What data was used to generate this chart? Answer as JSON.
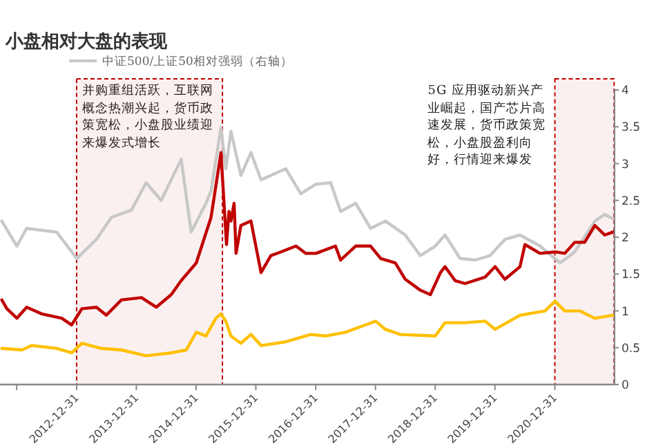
{
  "chart_data": {
    "type": "line",
    "title": "小盘相对大盘的表现",
    "xlim": [
      "2011-09-20",
      "2021-12-31"
    ],
    "xticks": [
      {
        "value": "2011-12-31",
        "label": null
      },
      "2012-12-31",
      "2013-12-31",
      "2014-12-31",
      "2015-12-31",
      "2016-12-31",
      "2017-12-31",
      "2018-12-31",
      "2019-12-31",
      "2020-12-31"
    ],
    "y2lim": [
      0,
      4
    ],
    "y2ticks": [
      0,
      0.5,
      1,
      1.5,
      2,
      2.5,
      3,
      3.5,
      4
    ],
    "legend": "top",
    "grid": false,
    "bands": [
      {
        "axis": "x",
        "from": "2012-12-31",
        "to": "2015-06-10",
        "label": "并购重组活跃，互联网概念热潮兴起，货币政策宽松，小盘股业绩迎来爆发式增长",
        "color": "#c00000"
      },
      {
        "axis": "x",
        "from": "2020-12-31",
        "to": "2021-12-28",
        "label": "5G 应用驱动新兴产业崛起，国产芯片高速发展，货币政策宽松，小盘股盈利向好，行情迎来爆发",
        "color": "#c00000"
      }
    ],
    "series": [
      {
        "name": "中证500/上证50相对强弱（右轴）",
        "color": "#c8c8c8",
        "axis": "y2",
        "x": [
          "2011-10",
          "2012-01",
          "2012-03",
          "2012-09",
          "2012-12",
          "2013-01",
          "2013-05",
          "2013-08",
          "2013-12",
          "2014-03",
          "2014-06",
          "2014-10",
          "2014-12",
          "2015-03",
          "2015-04",
          "2015-06",
          "2015-07",
          "2015-08",
          "2015-10",
          "2015-12",
          "2016-02",
          "2016-07",
          "2016-10",
          "2017-01",
          "2017-04",
          "2017-06",
          "2017-09",
          "2017-12",
          "2018-03",
          "2018-07",
          "2018-10",
          "2019-01",
          "2019-03",
          "2019-06",
          "2019-09",
          "2019-12",
          "2020-03",
          "2020-06",
          "2020-10",
          "2021-02",
          "2021-05",
          "2021-09",
          "2021-11",
          "2021-12-20"
        ],
        "values": [
          2.22,
          1.88,
          2.12,
          2.07,
          1.8,
          1.71,
          1.97,
          2.27,
          2.37,
          2.74,
          2.5,
          3.06,
          2.07,
          2.46,
          2.63,
          3.49,
          2.93,
          3.44,
          2.84,
          3.15,
          2.78,
          2.93,
          2.59,
          2.72,
          2.74,
          2.35,
          2.46,
          2.12,
          2.22,
          2.03,
          1.75,
          1.88,
          2.03,
          1.71,
          1.69,
          1.75,
          1.97,
          2.03,
          1.88,
          1.65,
          1.8,
          2.22,
          2.31,
          2.25
        ]
      },
      {
        "color": "#c00000",
        "axis": "y2",
        "x": [
          "2011-10",
          "2011-11",
          "2012-01",
          "2012-03",
          "2012-06",
          "2012-10",
          "2012-12",
          "2013-02",
          "2013-05",
          "2013-07",
          "2013-10",
          "2014-02",
          "2014-05",
          "2014-08",
          "2014-10",
          "2015-01",
          "2015-04",
          "2015-06",
          "2015-07-05",
          "2015-07-20",
          "2015-08",
          "2015-08-20",
          "2015-09",
          "2015-10",
          "2015-12",
          "2016-02",
          "2016-04",
          "2016-06",
          "2016-09",
          "2016-11",
          "2017-01",
          "2017-05",
          "2017-06",
          "2017-09",
          "2017-12",
          "2018-02",
          "2018-05",
          "2018-07",
          "2018-10",
          "2018-12",
          "2019-02",
          "2019-03",
          "2019-05",
          "2019-07",
          "2019-11",
          "2020-01",
          "2020-03",
          "2020-06",
          "2020-07",
          "2020-10",
          "2021-01",
          "2021-03",
          "2021-05",
          "2021-07",
          "2021-09",
          "2021-11",
          "2021-12-20"
        ],
        "values": [
          1.15,
          1.03,
          0.9,
          1.05,
          0.96,
          0.9,
          0.81,
          1.03,
          1.05,
          0.94,
          1.15,
          1.18,
          1.05,
          1.22,
          1.41,
          1.65,
          2.27,
          3.15,
          1.9,
          2.35,
          2.22,
          2.46,
          1.78,
          2.16,
          2.22,
          1.52,
          1.75,
          1.8,
          1.88,
          1.78,
          1.78,
          1.88,
          1.69,
          1.88,
          1.88,
          1.71,
          1.65,
          1.43,
          1.28,
          1.22,
          1.52,
          1.6,
          1.41,
          1.37,
          1.46,
          1.6,
          1.43,
          1.6,
          1.9,
          1.78,
          1.8,
          1.78,
          1.93,
          1.93,
          2.16,
          2.03,
          2.07
        ]
      },
      {
        "color": "#ffc000",
        "axis": "y2",
        "x": [
          "2011-10",
          "2012-02",
          "2012-04",
          "2012-09",
          "2012-12",
          "2013-02",
          "2013-06",
          "2013-10",
          "2014-03",
          "2014-08",
          "2014-11",
          "2015-01",
          "2015-03",
          "2015-05",
          "2015-06",
          "2015-07",
          "2015-08",
          "2015-10",
          "2015-12",
          "2016-02",
          "2016-07",
          "2016-12",
          "2017-03",
          "2017-07",
          "2017-11",
          "2018-01",
          "2018-03",
          "2018-06",
          "2019-01",
          "2019-03",
          "2019-07",
          "2019-11",
          "2020-01",
          "2020-06",
          "2020-11",
          "2021-01",
          "2021-03",
          "2021-06",
          "2021-09",
          "2021-12-20"
        ],
        "values": [
          0.49,
          0.47,
          0.53,
          0.49,
          0.43,
          0.56,
          0.49,
          0.47,
          0.39,
          0.43,
          0.47,
          0.71,
          0.66,
          0.9,
          0.96,
          0.86,
          0.66,
          0.56,
          0.68,
          0.53,
          0.58,
          0.68,
          0.66,
          0.71,
          0.81,
          0.86,
          0.75,
          0.68,
          0.66,
          0.84,
          0.84,
          0.86,
          0.75,
          0.94,
          1.0,
          1.13,
          1.0,
          1.0,
          0.9,
          0.94
        ]
      }
    ]
  }
}
